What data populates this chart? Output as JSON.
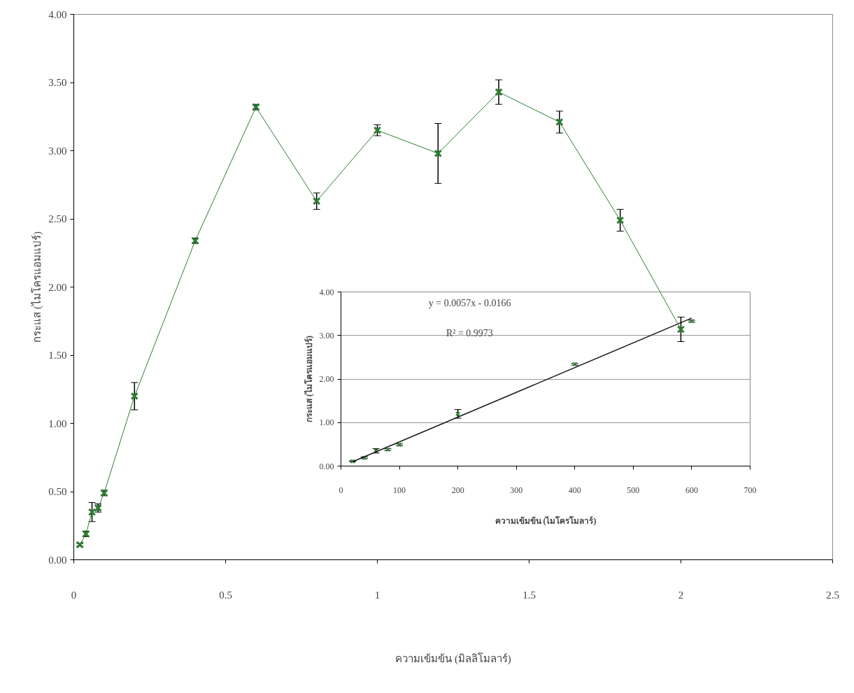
{
  "chart_data": [
    {
      "type": "line",
      "xlabel": "ความเข้มข้น (มิลลิโมลาร์)",
      "ylabel": "กระแส (ไมโครแอมแปร์)",
      "xlim": [
        0,
        2.5
      ],
      "xticks": [
        0,
        0.5,
        1,
        1.5,
        2,
        2.5
      ],
      "ylim": [
        0,
        4
      ],
      "yticks": [
        {
          "value": 0,
          "label": "0.00"
        },
        {
          "value": 0.5,
          "label": "0.50"
        },
        {
          "value": 1,
          "label": "1.00"
        },
        {
          "value": 1.5,
          "label": "1.50"
        },
        {
          "value": 2,
          "label": "2.00"
        },
        {
          "value": 2.5,
          "label": "2.50"
        },
        {
          "value": 3,
          "label": "3.00"
        },
        {
          "value": 3.5,
          "label": "3.50"
        },
        {
          "value": 4,
          "label": "4.00"
        }
      ],
      "grid": false,
      "marker": "cross",
      "line_style": "solid",
      "series": [
        {
          "color": "#2e7d32",
          "x": [
            0.02,
            0.04,
            0.06,
            0.08,
            0.1,
            0.2,
            0.4,
            0.6,
            0.8,
            1.0,
            1.2,
            1.4,
            1.6,
            1.8,
            2.0
          ],
          "values": [
            0.11,
            0.19,
            0.35,
            0.38,
            0.49,
            1.2,
            2.34,
            3.32,
            2.63,
            3.15,
            2.98,
            3.43,
            3.21,
            2.49,
            1.69
          ],
          "errors": [
            0.01,
            0.02,
            0.07,
            0.03,
            0.02,
            0.1,
            0.02,
            0.02,
            0.06,
            0.04,
            0.22,
            0.09,
            0.08,
            0.08,
            0.09
          ]
        }
      ]
    },
    {
      "type": "scatter",
      "xlabel": "ความเข้มข้น (ไมโครโมลาร์)",
      "ylabel": "กระแส (ไมโครแอมแปร์)",
      "xlim": [
        0,
        700
      ],
      "xticks": [
        0,
        100,
        200,
        300,
        400,
        500,
        600,
        700
      ],
      "ylim": [
        0,
        4
      ],
      "yticks": [
        {
          "value": 0,
          "label": "0.00"
        },
        {
          "value": 1,
          "label": "1.00"
        },
        {
          "value": 2,
          "label": "2.00"
        },
        {
          "value": 3,
          "label": "3.00"
        },
        {
          "value": 4,
          "label": "4.00"
        }
      ],
      "grid": "y",
      "marker": "cross",
      "annotations": [
        "y = 0.0057x - 0.0166",
        "R² = 0.9973"
      ],
      "series": [
        {
          "color": "#2e7d32",
          "x": [
            20,
            40,
            60,
            80,
            100,
            200,
            400,
            600
          ],
          "values": [
            0.11,
            0.19,
            0.35,
            0.38,
            0.49,
            1.2,
            2.34,
            3.33
          ],
          "errors": [
            0.01,
            0.02,
            0.05,
            0.02,
            0.02,
            0.1,
            0.02,
            0.02
          ]
        },
        {
          "type": "line",
          "color": "#1a1a1a",
          "x": [
            20,
            600
          ],
          "values": [
            0.1,
            3.4
          ],
          "marker": "none"
        }
      ]
    }
  ]
}
